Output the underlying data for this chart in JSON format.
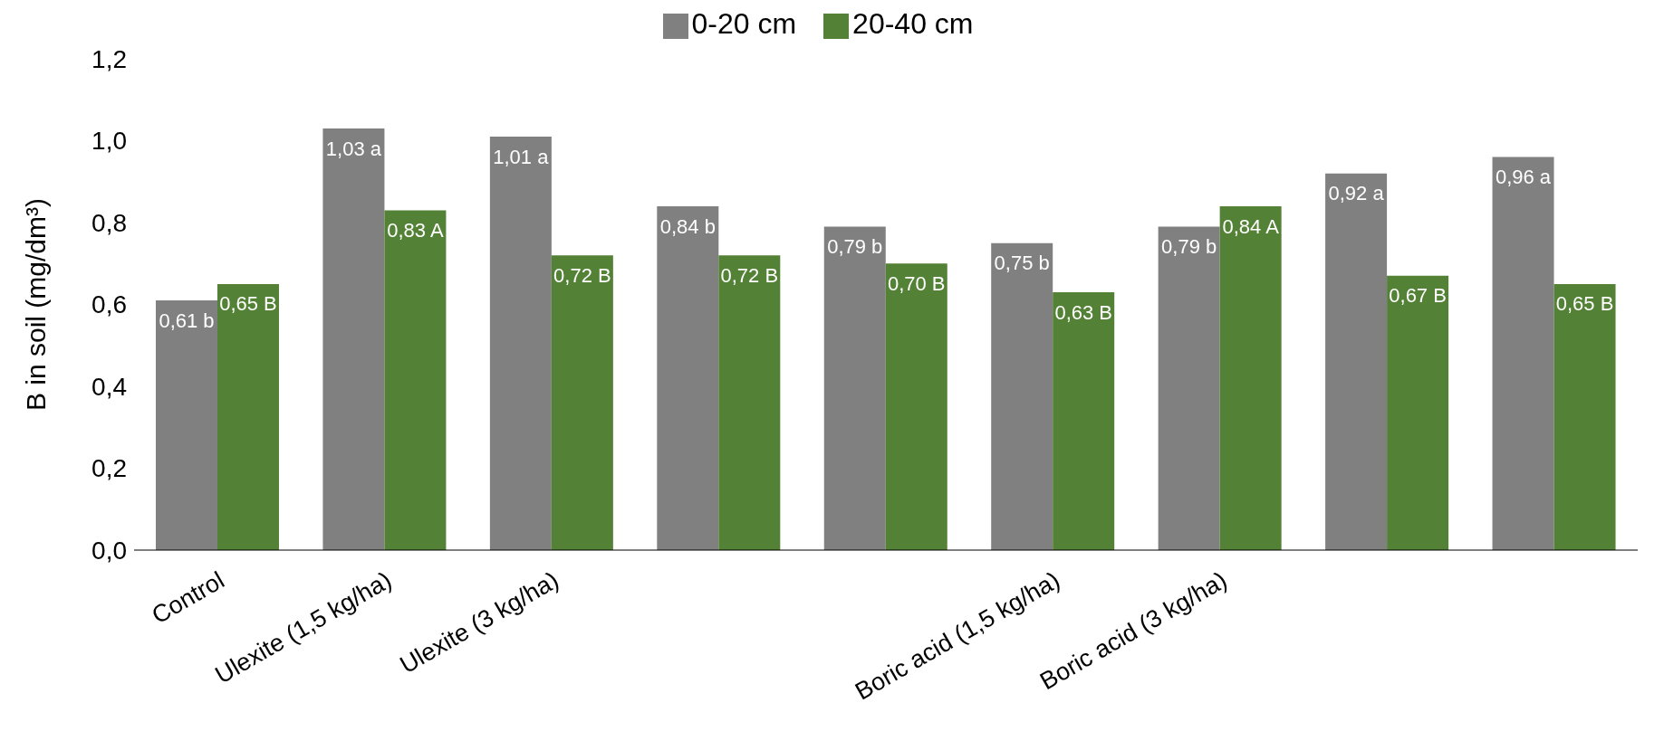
{
  "chart_data": {
    "type": "bar",
    "ylabel": "B in soil (mg/dm³)",
    "categories": [
      "Control",
      "Ulexite (1,5 kg/ha)",
      "Ulexite (3 kg/ha)",
      null,
      null,
      "Boric acid (1,5 kg/ha)",
      "Boric acid (3 kg/ha)",
      null,
      null
    ],
    "series": [
      {
        "name": "0-20 cm",
        "color": "#808080",
        "values": [
          0.61,
          1.03,
          1.01,
          0.84,
          0.79,
          0.75,
          0.79,
          0.92,
          0.96
        ],
        "value_labels": [
          "0,61 b",
          "1,03 a",
          "1,01 a",
          "0,84 b",
          "0,79 b",
          "0,75 b",
          "0,79 b",
          "0,92 a",
          "0,96 a"
        ]
      },
      {
        "name": "20-40 cm",
        "color": "#538135",
        "values": [
          0.65,
          0.83,
          0.72,
          0.72,
          0.7,
          0.63,
          0.84,
          0.67,
          0.65
        ],
        "value_labels": [
          "0,65 B",
          "0,83 A",
          "0,72 B",
          "0,72 B",
          "0,70 B",
          "0,63 B",
          "0,84 A",
          "0,67 B",
          "0,65 B"
        ]
      }
    ],
    "ylim": [
      0,
      1.2
    ],
    "yticks": [
      {
        "value": 0,
        "label": "0,0"
      },
      {
        "value": 0.2,
        "label": "0,2"
      },
      {
        "value": 0.4,
        "label": "0,4"
      },
      {
        "value": 0.6,
        "label": "0,6"
      },
      {
        "value": 0.8,
        "label": "0,8"
      },
      {
        "value": 1,
        "label": "1,0"
      },
      {
        "value": 1.2,
        "label": "1,2"
      }
    ],
    "legend": "top"
  }
}
